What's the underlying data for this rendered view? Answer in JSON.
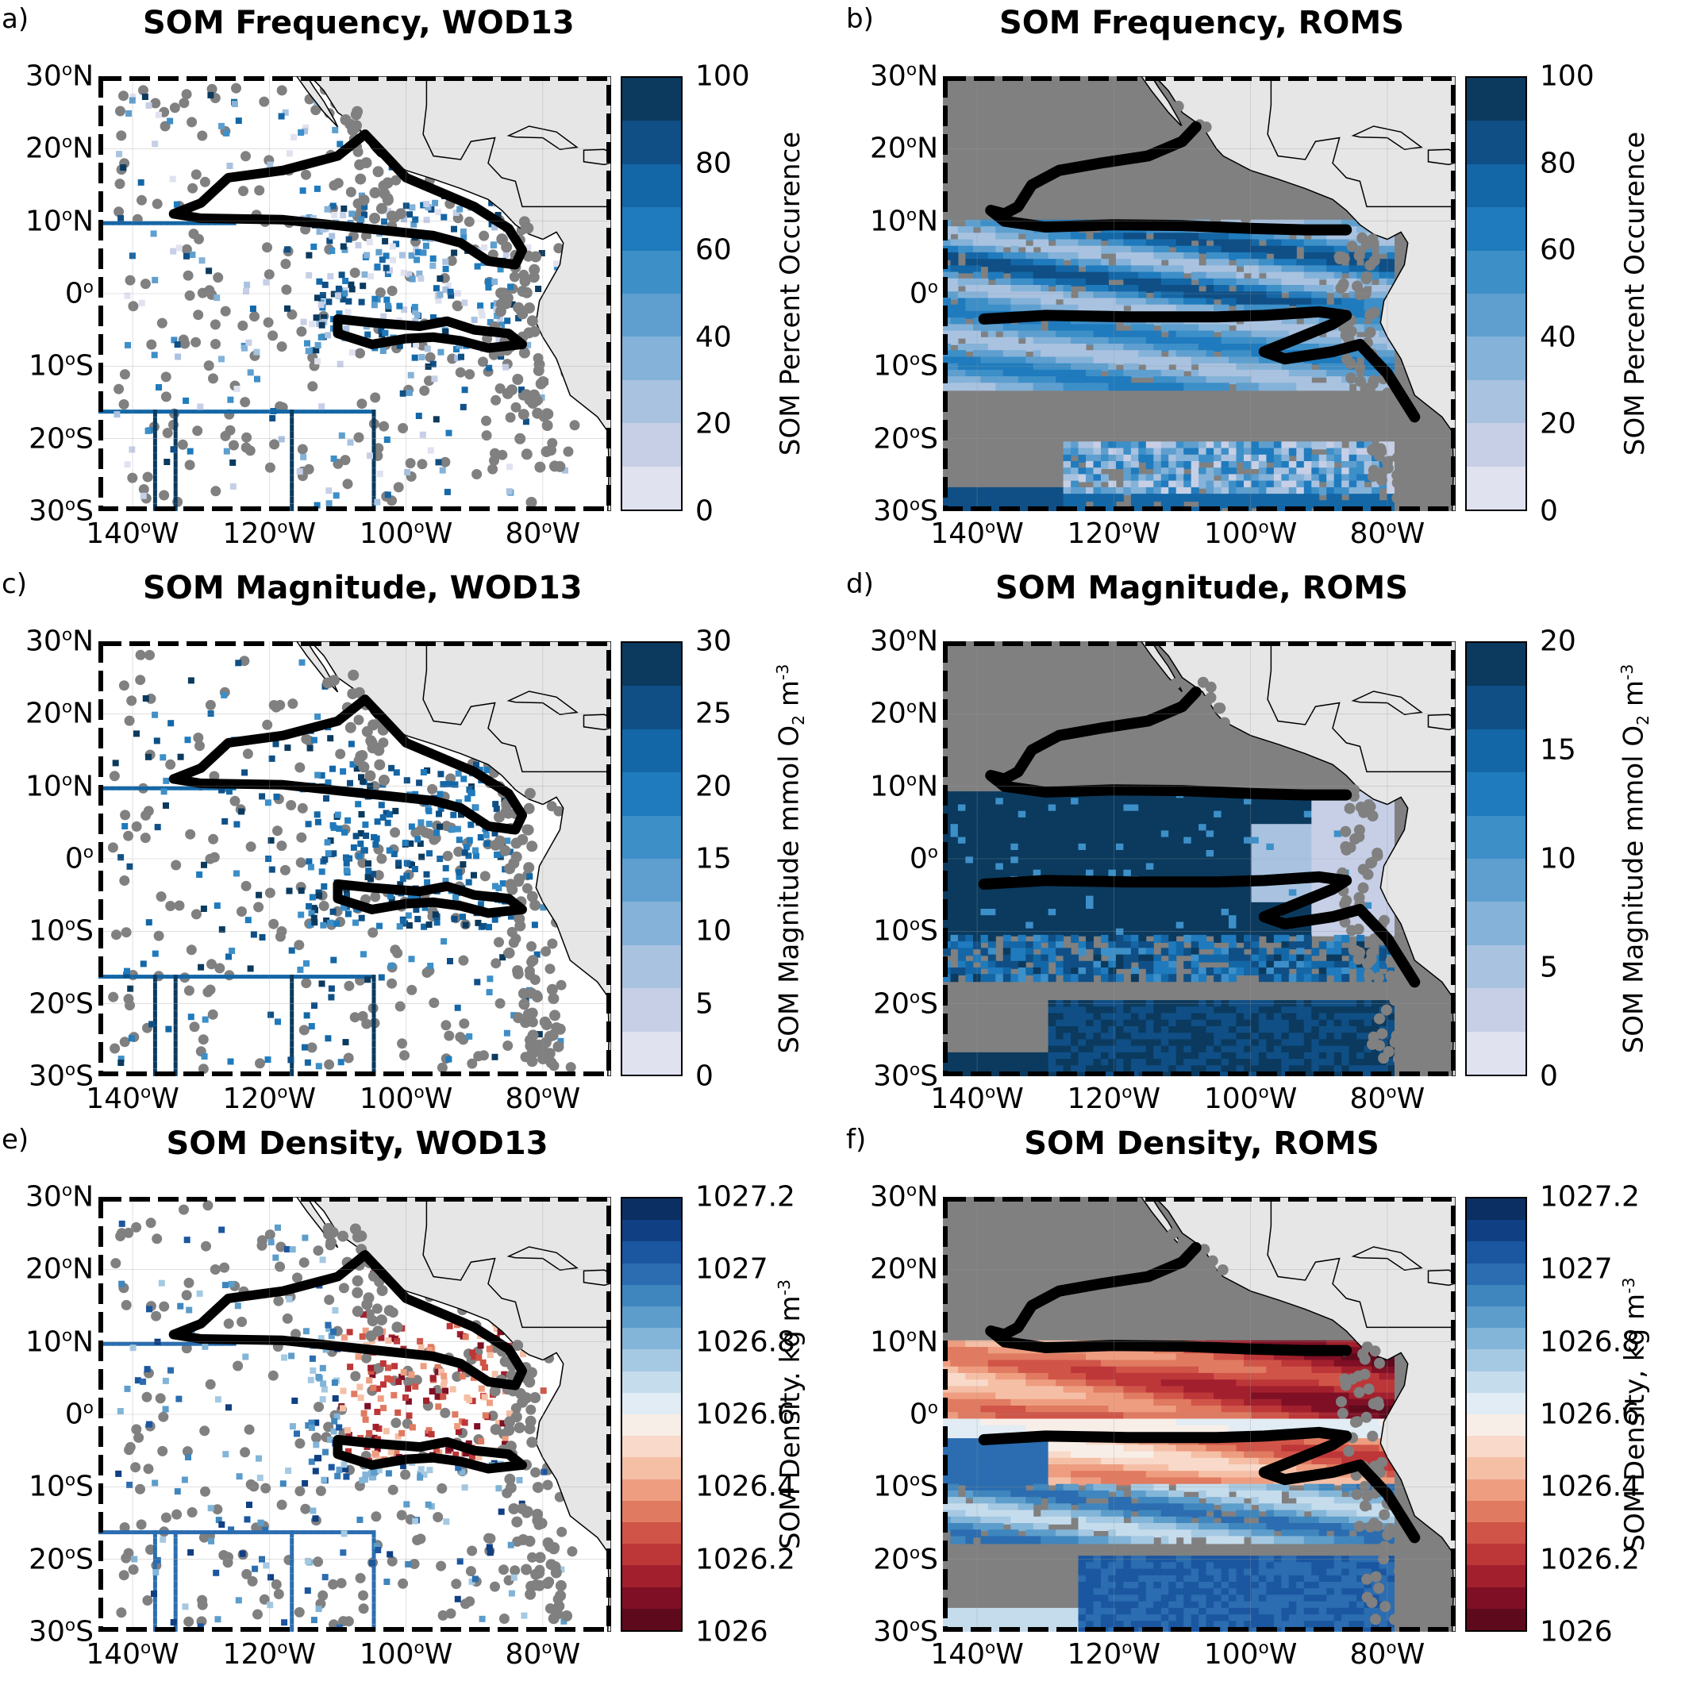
{
  "map": {
    "lat_labels": [
      {
        "value": 30,
        "text": "30",
        "deg": "o",
        "hemi": "N"
      },
      {
        "value": 20,
        "text": "20",
        "deg": "o",
        "hemi": "N"
      },
      {
        "value": 10,
        "text": "10",
        "deg": "o",
        "hemi": "N"
      },
      {
        "value": 0,
        "text": "0",
        "deg": "o",
        "hemi": ""
      },
      {
        "value": -10,
        "text": "10",
        "deg": "o",
        "hemi": "S"
      },
      {
        "value": -20,
        "text": "20",
        "deg": "o",
        "hemi": "S"
      },
      {
        "value": -30,
        "text": "30",
        "deg": "o",
        "hemi": "S"
      }
    ],
    "lon_labels": [
      {
        "value": -140,
        "text": "140",
        "deg": "o",
        "hemi": "W"
      },
      {
        "value": -120,
        "text": "120",
        "deg": "o",
        "hemi": "W"
      },
      {
        "value": -100,
        "text": "100",
        "deg": "o",
        "hemi": "W"
      },
      {
        "value": -80,
        "text": "80",
        "deg": "o",
        "hemi": "W"
      }
    ],
    "extent": {
      "lon": [
        -145,
        -70
      ],
      "lat": [
        -30,
        30
      ]
    },
    "colors": {
      "land": "#e6e6e6",
      "missing": "#808080",
      "ocean": "#ffffff",
      "contour": "#000000"
    }
  },
  "panels": [
    {
      "letter": "a)",
      "title": "SOM Frequency, WOD13",
      "colorbar": {
        "ticks": [
          "100",
          "80",
          "60",
          "40",
          "20",
          "0"
        ],
        "label_main": "SOM Percent Occurence",
        "label_sub": "",
        "label_sup": "",
        "colors": [
          "#0b3a5e",
          "#0f4f86",
          "#1467a6",
          "#1f7bbd",
          "#3d8fc8",
          "#5e9fcf",
          "#84b2d8",
          "#a9c2e0",
          "#c6cfe6",
          "#e0e2f0"
        ]
      },
      "data_type": "observations",
      "field": "frequency"
    },
    {
      "letter": "b)",
      "title": "SOM Frequency, ROMS",
      "colorbar": {
        "ticks": [
          "100",
          "80",
          "60",
          "40",
          "20",
          "0"
        ],
        "label_main": "SOM Percent Occurence",
        "label_sub": "",
        "label_sup": "",
        "colors": [
          "#0b3a5e",
          "#0f4f86",
          "#1467a6",
          "#1f7bbd",
          "#3d8fc8",
          "#5e9fcf",
          "#84b2d8",
          "#a9c2e0",
          "#c6cfe6",
          "#e0e2f0"
        ]
      },
      "data_type": "model",
      "field": "frequency"
    },
    {
      "letter": "c)",
      "title": "SOM Magnitude, WOD13",
      "colorbar": {
        "ticks": [
          "30",
          "25",
          "20",
          "15",
          "10",
          "5",
          "0"
        ],
        "label_main": "SOM Magnitude mmol O",
        "label_sub": "2",
        "label_sup": "-3",
        "unit_tail": " m",
        "colors": [
          "#0b3a5e",
          "#0f4f86",
          "#1467a6",
          "#1f7bbd",
          "#3d8fc8",
          "#5e9fcf",
          "#84b2d8",
          "#a9c2e0",
          "#c6cfe6",
          "#e0e2f0"
        ]
      },
      "data_type": "observations",
      "field": "magnitude"
    },
    {
      "letter": "d)",
      "title": "SOM Magnitude, ROMS",
      "colorbar": {
        "ticks": [
          "20",
          "15",
          "10",
          "5",
          "0"
        ],
        "label_main": "SOM Magnitude mmol O",
        "label_sub": "2",
        "label_sup": "-3",
        "unit_tail": " m",
        "colors": [
          "#0b3a5e",
          "#0f4f86",
          "#1467a6",
          "#1f7bbd",
          "#3d8fc8",
          "#5e9fcf",
          "#84b2d8",
          "#a9c2e0",
          "#c6cfe6",
          "#e0e2f0"
        ]
      },
      "data_type": "model",
      "field": "magnitude"
    },
    {
      "letter": "e)",
      "title": "SOM Density, WOD13",
      "colorbar": {
        "ticks": [
          "1027.2",
          "1027",
          "1026.8",
          "1026.6",
          "1026.4",
          "1026.2",
          "1026"
        ],
        "label_main": "SOM Density. kg m",
        "label_sub": "",
        "label_sup": "-3",
        "colors": [
          "#0b2f63",
          "#103f83",
          "#1b56a0",
          "#2b6db0",
          "#3f86be",
          "#5d9dcb",
          "#82b5d8",
          "#a5c9e2",
          "#c5dcec",
          "#e1ecf4",
          "#f8eee8",
          "#f9d9c9",
          "#f5bfa6",
          "#ee9d80",
          "#e07a60",
          "#d05548",
          "#bd3638",
          "#a2202d",
          "#7e0f24",
          "#5f0a1c"
        ]
      },
      "data_type": "observations",
      "field": "density"
    },
    {
      "letter": "f)",
      "title": "SOM Density, ROMS",
      "colorbar": {
        "ticks": [
          "1027.2",
          "1027",
          "1026.8",
          "1026.6",
          "1026.4",
          "1026.2",
          "1026"
        ],
        "label_main": "SOM Density, kg m",
        "label_sub": "",
        "label_sup": "-3",
        "colors": [
          "#0b2f63",
          "#103f83",
          "#1b56a0",
          "#2b6db0",
          "#3f86be",
          "#5d9dcb",
          "#82b5d8",
          "#a5c9e2",
          "#c5dcec",
          "#e1ecf4",
          "#f8eee8",
          "#f9d9c9",
          "#f5bfa6",
          "#ee9d80",
          "#e07a60",
          "#d05548",
          "#bd3638",
          "#a2202d",
          "#7e0f24",
          "#5f0a1c"
        ]
      },
      "data_type": "model",
      "field": "density"
    }
  ]
}
